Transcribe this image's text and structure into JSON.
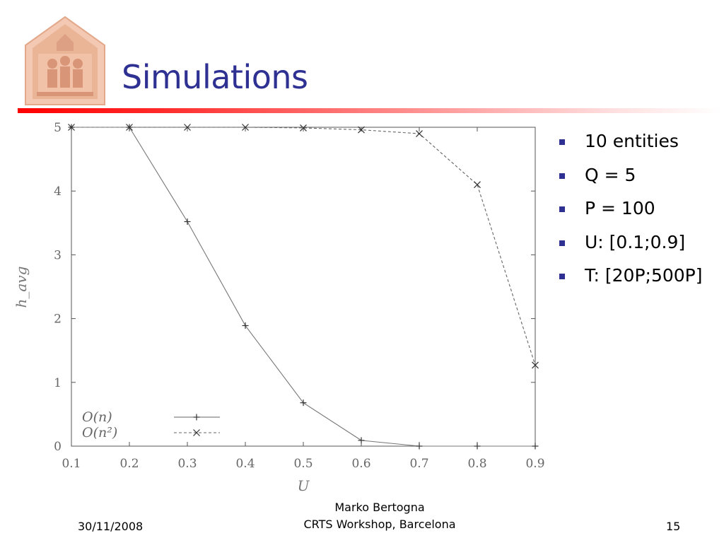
{
  "slide": {
    "title": "Simulations",
    "bullets": [
      "10 entities",
      "Q = 5",
      "P = 100",
      "U: [0.1;0.9]",
      "T: [20P;500P]"
    ],
    "footer": {
      "date": "30/11/2008",
      "author": "Marko Bertogna",
      "event": "CRTS Workshop, Barcelona",
      "page": "15"
    }
  },
  "colors": {
    "title": "#2e3192",
    "bullet": "#2e3192",
    "rule_start": "#ff0000"
  },
  "chart_data": {
    "type": "line",
    "xlabel": "U",
    "ylabel": "h_avg",
    "xlim": [
      0.1,
      0.9
    ],
    "ylim": [
      0,
      5
    ],
    "x_ticks": [
      "0.1",
      "0.2",
      "0.3",
      "0.4",
      "0.5",
      "0.6",
      "0.7",
      "0.8",
      "0.9"
    ],
    "y_ticks": [
      "0",
      "1",
      "2",
      "3",
      "4",
      "5"
    ],
    "grid": false,
    "legend_position": "bottom-left",
    "series": [
      {
        "name": "O(n)",
        "style": "solid",
        "marker": "+",
        "x": [
          0.1,
          0.2,
          0.3,
          0.4,
          0.5,
          0.6,
          0.7,
          0.8,
          0.9
        ],
        "y": [
          5.0,
          5.0,
          3.52,
          1.89,
          0.68,
          0.09,
          0.0,
          0.0,
          0.0
        ]
      },
      {
        "name": "O(n²)",
        "style": "dashed",
        "marker": "x",
        "x": [
          0.1,
          0.2,
          0.3,
          0.4,
          0.5,
          0.6,
          0.7,
          0.8,
          0.9
        ],
        "y": [
          5.0,
          5.0,
          5.0,
          5.0,
          4.99,
          4.96,
          4.9,
          4.1,
          1.27
        ]
      }
    ]
  }
}
